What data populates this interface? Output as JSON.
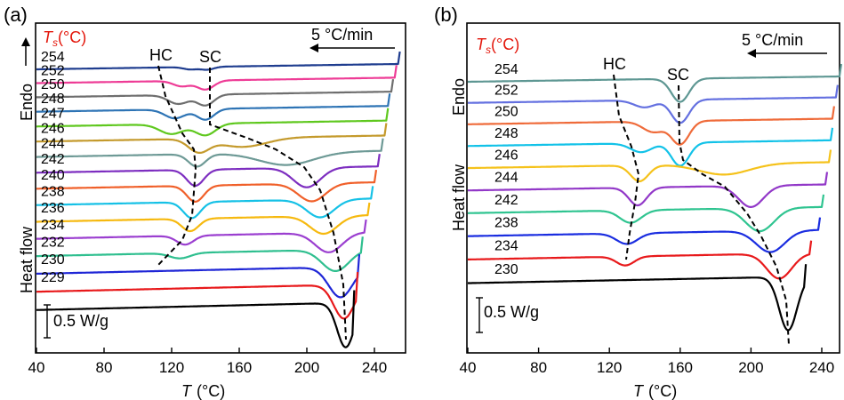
{
  "chart_data": [
    {
      "panel": "(a)",
      "type": "line",
      "xlabel_var": "T",
      "xlabel_unit": "(°C)",
      "xlim": [
        40,
        255
      ],
      "xticks": [
        40,
        80,
        120,
        160,
        200,
        240
      ],
      "series_header_var": "T",
      "series_header_sub": "s",
      "series_header_unit": "(°C)",
      "ylabel_endo": "Endo",
      "ylabel_heat": "Heat flow",
      "rate_label": "5 °C/min",
      "scale_label": "0.5 W/g",
      "hc_label": "HC",
      "sc_label": "SC",
      "series": [
        {
          "name": "254",
          "color": "#1f3d8f",
          "end": 254,
          "dips": [
            [
              141,
              4,
              3.2
            ],
            [
              131,
              4,
              2.6
            ]
          ]
        },
        {
          "name": "252",
          "color": "#ee3c96",
          "end": 252,
          "dips": [
            [
              140,
              5,
              10
            ],
            [
              126,
              5,
              6
            ]
          ]
        },
        {
          "name": "250",
          "color": "#6e6e6e",
          "end": 250,
          "dips": [
            [
              140,
              5,
              12
            ],
            [
              124,
              6,
              10
            ]
          ]
        },
        {
          "name": "248",
          "color": "#2e74b5",
          "end": 248,
          "dips": [
            [
              140,
              5,
              12
            ],
            [
              122,
              6,
              10
            ]
          ]
        },
        {
          "name": "247",
          "color": "#5fc81e",
          "end": 247,
          "dips": [
            [
              140,
              6,
              13
            ],
            [
              120,
              7,
              11
            ]
          ]
        },
        {
          "name": "246",
          "color": "#c49a2c",
          "end": 246,
          "dips": [
            [
              136,
              6,
              14
            ],
            [
              162,
              14,
              10
            ]
          ]
        },
        {
          "name": "244",
          "color": "#6e9a96",
          "end": 244,
          "dips": [
            [
              135,
              5,
              14
            ],
            [
              188,
              16,
              14
            ]
          ]
        },
        {
          "name": "242",
          "color": "#7d2ec0",
          "end": 242,
          "dips": [
            [
              134,
              5,
              18
            ],
            [
              200,
              8,
              22
            ]
          ]
        },
        {
          "name": "240",
          "color": "#f0602a",
          "end": 240,
          "dips": [
            [
              134,
              5,
              18
            ],
            [
              203,
              8,
              20
            ]
          ]
        },
        {
          "name": "238",
          "color": "#16c1e6",
          "end": 238,
          "dips": [
            [
              132,
              5,
              18
            ],
            [
              208,
              8,
              20
            ]
          ]
        },
        {
          "name": "236",
          "color": "#f6b90f",
          "end": 236,
          "dips": [
            [
              131,
              5,
              14
            ],
            [
              210,
              8,
              20
            ]
          ]
        },
        {
          "name": "234",
          "color": "#9b3fd0",
          "end": 234,
          "dips": [
            [
              128,
              5,
              10
            ],
            [
              213,
              8,
              22
            ]
          ]
        },
        {
          "name": "232",
          "color": "#2fbf8f",
          "end": 232,
          "dips": [
            [
              125,
              6,
              6
            ],
            [
              217,
              8,
              24
            ]
          ]
        },
        {
          "name": "230",
          "color": "#1f26d6",
          "end": 230,
          "dips": [
            [
              220,
              7,
              34
            ]
          ]
        },
        {
          "name": "229",
          "color": "#e8191b",
          "end": 229,
          "dips": [
            [
              222,
              6,
              38
            ]
          ]
        },
        {
          "name": "",
          "color": "#000000",
          "end": 227,
          "dips": [
            [
              223,
              5,
              50
            ]
          ]
        }
      ]
    },
    {
      "panel": "(b)",
      "type": "line",
      "xlabel_var": "T",
      "xlabel_unit": "(°C)",
      "xlim": [
        40,
        252
      ],
      "xticks": [
        40,
        80,
        120,
        160,
        200,
        240
      ],
      "series_header_var": "T",
      "series_header_sub": "s",
      "series_header_unit": "(°C)",
      "ylabel_endo": "Endo",
      "ylabel_heat": "Heat flow",
      "rate_label": "5 °C/min",
      "scale_label": "0.5 W/g",
      "hc_label": "HC",
      "sc_label": "SC",
      "series": [
        {
          "name": "254",
          "color": "#5e9793",
          "end": 250,
          "dips": [
            [
              160,
              5,
              26
            ]
          ]
        },
        {
          "name": "252",
          "color": "#6470e0",
          "end": 248,
          "dips": [
            [
              160,
              5,
              26
            ],
            [
              140,
              6,
              8
            ]
          ]
        },
        {
          "name": "250",
          "color": "#ef6b3a",
          "end": 246,
          "dips": [
            [
              160,
              5,
              26
            ],
            [
              145,
              6,
              12
            ]
          ]
        },
        {
          "name": "248",
          "color": "#12c2e8",
          "end": 245,
          "dips": [
            [
              160,
              5,
              26
            ],
            [
              138,
              6,
              10
            ]
          ]
        },
        {
          "name": "246",
          "color": "#f5c21b",
          "end": 244,
          "dips": [
            [
              137,
              5,
              18
            ],
            [
              185,
              14,
              12
            ]
          ]
        },
        {
          "name": "244",
          "color": "#9238c8",
          "end": 242,
          "dips": [
            [
              136,
              5,
              20
            ],
            [
              200,
              7,
              24
            ]
          ]
        },
        {
          "name": "242",
          "color": "#2fc490",
          "end": 240,
          "dips": [
            [
              132,
              6,
              14
            ],
            [
              205,
              8,
              26
            ]
          ]
        },
        {
          "name": "238",
          "color": "#1a2de0",
          "end": 238,
          "dips": [
            [
              130,
              6,
              12
            ],
            [
              211,
              8,
              24
            ]
          ]
        },
        {
          "name": "234",
          "color": "#e8191b",
          "end": 233,
          "dips": [
            [
              129,
              5,
              10
            ],
            [
              216,
              7,
              28
            ]
          ]
        },
        {
          "name": "230",
          "color": "#000000",
          "end": 230,
          "dips": [
            [
              221,
              5,
              60
            ]
          ]
        }
      ]
    }
  ]
}
